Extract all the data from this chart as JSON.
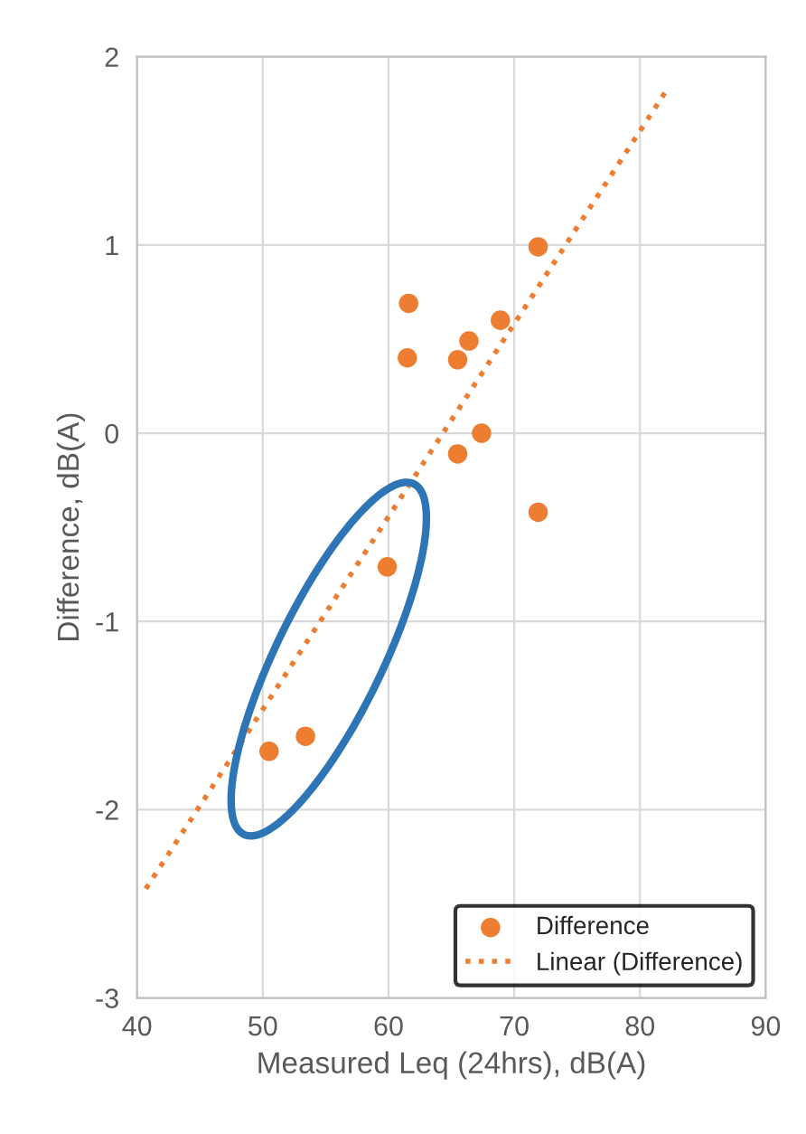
{
  "chart_data": {
    "type": "scatter",
    "xlabel": "Measured Leq (24hrs), dB(A)",
    "ylabel": "Difference, dB(A)",
    "xlim": [
      40,
      90
    ],
    "xticks": [
      40,
      50,
      60,
      70,
      80,
      90
    ],
    "ylim": [
      -3,
      2
    ],
    "yticks": [
      -3,
      -2,
      -1,
      0,
      1,
      2
    ],
    "grid": true,
    "legend": "bottom right",
    "marker": "circle",
    "series": [
      {
        "name": "Difference",
        "color": "#ed7d31",
        "x": [
          71.9,
          71.9,
          68.9,
          67.4,
          66.4,
          65.5,
          65.5,
          61.6,
          61.5,
          59.9,
          53.4,
          50.5
        ],
        "values": [
          0.99,
          -0.42,
          0.6,
          0.0,
          0.49,
          0.39,
          -0.11,
          0.69,
          0.4,
          -0.71,
          -1.61,
          -1.69
        ]
      },
      {
        "name": "Linear (Difference)",
        "type": "line",
        "line_style": "dotted",
        "marker": "none",
        "color": "#ed7d31",
        "x": [
          40.7,
          82.0
        ],
        "values": [
          -2.42,
          1.81
        ]
      }
    ]
  }
}
